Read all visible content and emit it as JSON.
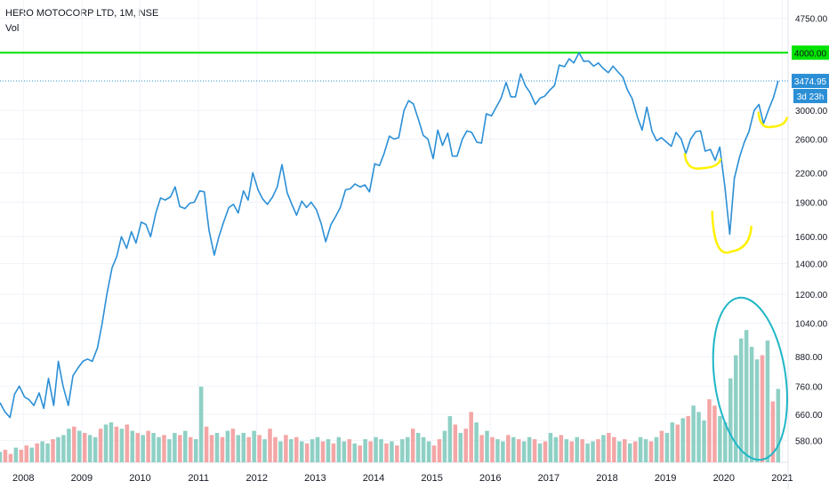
{
  "header": {
    "symbol_line": "HERO MOTOCORP LTD, 1M, NSE",
    "volume_label": "Vol"
  },
  "colors": {
    "price_line": "#2b8fd6",
    "level_line": "#00e400",
    "vol_up": "#8fd0c5",
    "vol_down": "#f4a6a6",
    "annotation_yellow": "#fff100",
    "annotation_circle": "#1fb6c6",
    "price_badge": "#2b8fd6",
    "level_badge": "#00e400"
  },
  "chart_data": {
    "type": "line",
    "price_axis": {
      "ticks": [
        "4750.00",
        "4000.00",
        "3000.00",
        "2600.00",
        "2200.00",
        "1900.00",
        "1600.00",
        "1400.00",
        "1200.00",
        "1040.00",
        "880.00",
        "760.00",
        "660.00",
        "580.00"
      ],
      "tick_values": [
        4750,
        4000,
        3000,
        2600,
        2200,
        1900,
        1600,
        1400,
        1200,
        1040,
        880,
        760,
        660,
        580
      ],
      "scale": "log",
      "range": [
        520,
        5200
      ]
    },
    "time_axis": {
      "labels": [
        "2008",
        "2009",
        "2010",
        "2011",
        "2012",
        "2013",
        "2014",
        "2015",
        "2016",
        "2017",
        "2018",
        "2019",
        "2020",
        "2021"
      ],
      "years": [
        2008,
        2009,
        2010,
        2011,
        2012,
        2013,
        2014,
        2015,
        2016,
        2017,
        2018,
        2019,
        2020,
        2021
      ],
      "range": [
        2007.6,
        2021.1
      ]
    },
    "series": [
      {
        "type": "line",
        "points": [
          [
            2007.6,
            700
          ],
          [
            2007.68,
            670
          ],
          [
            2007.77,
            650
          ],
          [
            2007.85,
            730
          ],
          [
            2007.93,
            760
          ],
          [
            2008.02,
            720
          ],
          [
            2008.1,
            710
          ],
          [
            2008.18,
            690
          ],
          [
            2008.27,
            735
          ],
          [
            2008.35,
            680
          ],
          [
            2008.43,
            790
          ],
          [
            2008.52,
            690
          ],
          [
            2008.6,
            860
          ],
          [
            2008.68,
            760
          ],
          [
            2008.77,
            690
          ],
          [
            2008.85,
            800
          ],
          [
            2008.93,
            830
          ],
          [
            2009.02,
            860
          ],
          [
            2009.1,
            870
          ],
          [
            2009.18,
            860
          ],
          [
            2009.27,
            920
          ],
          [
            2009.35,
            1040
          ],
          [
            2009.43,
            1200
          ],
          [
            2009.52,
            1370
          ],
          [
            2009.6,
            1450
          ],
          [
            2009.68,
            1600
          ],
          [
            2009.77,
            1510
          ],
          [
            2009.85,
            1640
          ],
          [
            2009.93,
            1550
          ],
          [
            2010.02,
            1720
          ],
          [
            2010.1,
            1700
          ],
          [
            2010.18,
            1600
          ],
          [
            2010.27,
            1800
          ],
          [
            2010.35,
            1940
          ],
          [
            2010.43,
            1920
          ],
          [
            2010.52,
            1950
          ],
          [
            2010.6,
            2050
          ],
          [
            2010.68,
            1860
          ],
          [
            2010.77,
            1840
          ],
          [
            2010.85,
            1890
          ],
          [
            2010.93,
            1900
          ],
          [
            2011.02,
            2010
          ],
          [
            2011.1,
            2000
          ],
          [
            2011.18,
            1650
          ],
          [
            2011.27,
            1460
          ],
          [
            2011.35,
            1600
          ],
          [
            2011.43,
            1720
          ],
          [
            2011.52,
            1850
          ],
          [
            2011.6,
            1880
          ],
          [
            2011.68,
            1800
          ],
          [
            2011.77,
            2010
          ],
          [
            2011.85,
            1920
          ],
          [
            2011.93,
            2200
          ],
          [
            2012.02,
            2020
          ],
          [
            2012.1,
            1930
          ],
          [
            2012.18,
            1880
          ],
          [
            2012.27,
            1950
          ],
          [
            2012.35,
            2050
          ],
          [
            2012.43,
            2290
          ],
          [
            2012.52,
            1990
          ],
          [
            2012.6,
            1880
          ],
          [
            2012.68,
            1780
          ],
          [
            2012.77,
            1910
          ],
          [
            2012.85,
            1850
          ],
          [
            2012.93,
            1900
          ],
          [
            2013.02,
            1830
          ],
          [
            2013.1,
            1710
          ],
          [
            2013.18,
            1560
          ],
          [
            2013.27,
            1700
          ],
          [
            2013.35,
            1770
          ],
          [
            2013.43,
            1850
          ],
          [
            2013.52,
            2020
          ],
          [
            2013.6,
            2030
          ],
          [
            2013.68,
            2080
          ],
          [
            2013.77,
            2050
          ],
          [
            2013.85,
            2070
          ],
          [
            2013.93,
            2000
          ],
          [
            2014.02,
            2300
          ],
          [
            2014.1,
            2280
          ],
          [
            2014.18,
            2420
          ],
          [
            2014.27,
            2640
          ],
          [
            2014.35,
            2600
          ],
          [
            2014.43,
            2620
          ],
          [
            2014.52,
            3000
          ],
          [
            2014.6,
            3150
          ],
          [
            2014.68,
            3100
          ],
          [
            2014.77,
            2860
          ],
          [
            2014.85,
            2650
          ],
          [
            2014.93,
            2600
          ],
          [
            2015.02,
            2360
          ],
          [
            2015.1,
            2720
          ],
          [
            2015.18,
            2520
          ],
          [
            2015.27,
            2680
          ],
          [
            2015.35,
            2390
          ],
          [
            2015.43,
            2390
          ],
          [
            2015.52,
            2600
          ],
          [
            2015.6,
            2710
          ],
          [
            2015.68,
            2690
          ],
          [
            2015.77,
            2560
          ],
          [
            2015.85,
            2550
          ],
          [
            2015.93,
            2950
          ],
          [
            2016.02,
            2920
          ],
          [
            2016.1,
            3050
          ],
          [
            2016.18,
            3180
          ],
          [
            2016.27,
            3450
          ],
          [
            2016.35,
            3210
          ],
          [
            2016.43,
            3210
          ],
          [
            2016.52,
            3600
          ],
          [
            2016.6,
            3390
          ],
          [
            2016.68,
            3280
          ],
          [
            2016.77,
            3090
          ],
          [
            2016.85,
            3190
          ],
          [
            2016.93,
            3220
          ],
          [
            2017.02,
            3320
          ],
          [
            2017.1,
            3400
          ],
          [
            2017.18,
            3760
          ],
          [
            2017.27,
            3730
          ],
          [
            2017.35,
            3880
          ],
          [
            2017.43,
            3800
          ],
          [
            2017.52,
            4000
          ],
          [
            2017.6,
            3830
          ],
          [
            2017.68,
            3840
          ],
          [
            2017.77,
            3740
          ],
          [
            2017.85,
            3800
          ],
          [
            2017.93,
            3700
          ],
          [
            2018.02,
            3620
          ],
          [
            2018.1,
            3740
          ],
          [
            2018.18,
            3640
          ],
          [
            2018.27,
            3540
          ],
          [
            2018.35,
            3320
          ],
          [
            2018.43,
            3180
          ],
          [
            2018.52,
            2900
          ],
          [
            2018.6,
            2720
          ],
          [
            2018.68,
            3050
          ],
          [
            2018.77,
            2700
          ],
          [
            2018.85,
            2580
          ],
          [
            2018.93,
            2620
          ],
          [
            2019.02,
            2560
          ],
          [
            2019.1,
            2510
          ],
          [
            2019.18,
            2690
          ],
          [
            2019.27,
            2600
          ],
          [
            2019.35,
            2420
          ],
          [
            2019.43,
            2600
          ],
          [
            2019.52,
            2700
          ],
          [
            2019.6,
            2710
          ],
          [
            2019.68,
            2450
          ],
          [
            2019.77,
            2470
          ],
          [
            2019.85,
            2340
          ],
          [
            2019.93,
            2500
          ],
          [
            2020.02,
            2040
          ],
          [
            2020.1,
            1620
          ],
          [
            2020.18,
            2140
          ],
          [
            2020.27,
            2380
          ],
          [
            2020.35,
            2560
          ],
          [
            2020.43,
            2700
          ],
          [
            2020.52,
            3000
          ],
          [
            2020.6,
            3090
          ],
          [
            2020.68,
            2810
          ],
          [
            2020.77,
            3020
          ],
          [
            2020.85,
            3200
          ],
          [
            2020.93,
            3474.95
          ]
        ]
      },
      {
        "type": "bar",
        "name": "Vol",
        "note_scale": "relative volume 0-1",
        "values": [
          0.05,
          0.06,
          0.04,
          0.07,
          0.06,
          0.08,
          0.07,
          0.09,
          0.1,
          0.09,
          0.11,
          0.12,
          0.13,
          0.16,
          0.17,
          0.15,
          0.14,
          0.13,
          0.12,
          0.16,
          0.18,
          0.19,
          0.17,
          0.16,
          0.18,
          0.15,
          0.14,
          0.13,
          0.15,
          0.14,
          0.12,
          0.13,
          0.11,
          0.14,
          0.13,
          0.15,
          0.12,
          0.11,
          0.36,
          0.17,
          0.13,
          0.14,
          0.12,
          0.15,
          0.16,
          0.13,
          0.14,
          0.12,
          0.15,
          0.13,
          0.11,
          0.16,
          0.12,
          0.1,
          0.13,
          0.11,
          0.12,
          0.1,
          0.09,
          0.11,
          0.12,
          0.1,
          0.11,
          0.09,
          0.12,
          0.1,
          0.11,
          0.09,
          0.08,
          0.11,
          0.1,
          0.12,
          0.11,
          0.09,
          0.1,
          0.08,
          0.11,
          0.12,
          0.16,
          0.14,
          0.12,
          0.1,
          0.08,
          0.11,
          0.15,
          0.22,
          0.18,
          0.14,
          0.16,
          0.24,
          0.19,
          0.13,
          0.15,
          0.12,
          0.11,
          0.1,
          0.13,
          0.12,
          0.11,
          0.1,
          0.12,
          0.11,
          0.09,
          0.1,
          0.14,
          0.12,
          0.13,
          0.11,
          0.1,
          0.12,
          0.11,
          0.09,
          0.1,
          0.11,
          0.13,
          0.14,
          0.12,
          0.1,
          0.11,
          0.09,
          0.1,
          0.12,
          0.11,
          0.1,
          0.12,
          0.15,
          0.14,
          0.19,
          0.18,
          0.21,
          0.22,
          0.27,
          0.24,
          0.2,
          0.3,
          0.27,
          0.22,
          0.19,
          0.4,
          0.51,
          0.59,
          0.63,
          0.55,
          0.49,
          0.51,
          0.58,
          0.29,
          0.35
        ],
        "up": [
          1,
          0,
          0,
          1,
          0,
          0,
          1,
          0,
          1,
          1,
          0,
          1,
          1,
          1,
          0,
          1,
          0,
          1,
          1,
          0,
          1,
          1,
          0,
          1,
          0,
          1,
          0,
          1,
          0,
          1,
          1,
          0,
          1,
          1,
          0,
          1,
          0,
          1,
          1,
          0,
          0,
          1,
          0,
          1,
          0,
          1,
          1,
          0,
          1,
          0,
          1,
          0,
          0,
          1,
          0,
          1,
          0,
          1,
          0,
          1,
          1,
          0,
          1,
          0,
          1,
          1,
          0,
          1,
          0,
          1,
          0,
          1,
          1,
          0,
          1,
          0,
          1,
          1,
          0,
          1,
          1,
          1,
          0,
          0,
          1,
          1,
          0,
          1,
          0,
          0,
          1,
          0,
          1,
          0,
          1,
          1,
          0,
          1,
          0,
          1,
          1,
          0,
          1,
          0,
          1,
          1,
          0,
          1,
          0,
          1,
          0,
          1,
          1,
          0,
          1,
          0,
          0,
          1,
          0,
          1,
          0,
          1,
          1,
          0,
          1,
          0,
          1,
          1,
          0,
          1,
          0,
          1,
          1,
          1,
          0,
          0,
          1,
          1,
          1,
          1,
          1,
          1,
          1,
          1,
          0,
          1,
          0,
          1
        ]
      }
    ],
    "level_line": 4000,
    "last_price": 3474.95,
    "last_price_label": "3474.95",
    "level_label": "4000.00",
    "countdown_label": "3d 23h",
    "annotations": [
      {
        "type": "yellow-arc",
        "near": [
          2019.6,
          2300
        ]
      },
      {
        "type": "yellow-arc",
        "near": [
          2020.1,
          1650
        ]
      },
      {
        "type": "yellow-arc",
        "near": [
          2020.85,
          2800
        ]
      },
      {
        "type": "cyan-ellipse",
        "around": "2020 volume bars"
      }
    ]
  }
}
